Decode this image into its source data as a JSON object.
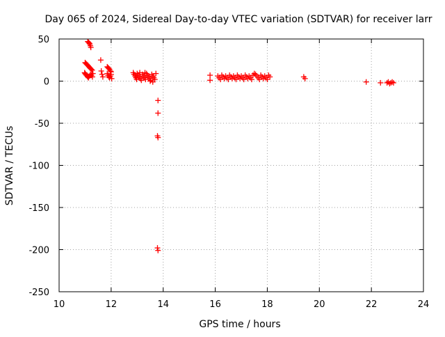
{
  "chart_data": {
    "type": "scatter",
    "title": "Day 065 of 2024, Sidereal Day-to-day VTEC variation (SDTVAR) for receiver larr",
    "xlabel": "GPS time / hours",
    "ylabel": "SDTVAR / TECUs",
    "xlim": [
      10,
      24
    ],
    "ylim": [
      -250,
      50
    ],
    "xticks": [
      10,
      12,
      14,
      16,
      18,
      20,
      22,
      24
    ],
    "yticks": [
      -250,
      -200,
      -150,
      -100,
      -50,
      0,
      50
    ],
    "xtick_labels": [
      "10",
      "12",
      "14",
      "16",
      "18",
      "20",
      "22",
      "24"
    ],
    "ytick_labels": [
      "-250",
      "-200",
      "-150",
      "-100",
      "-50",
      "0",
      "50"
    ],
    "grid": true,
    "marker": "plus",
    "color": "#ff0000",
    "series": [
      {
        "name": "SDTVAR",
        "points": [
          [
            11.1,
            47
          ],
          [
            11.13,
            46
          ],
          [
            11.16,
            45
          ],
          [
            11.18,
            44
          ],
          [
            11.2,
            42
          ],
          [
            11.22,
            40
          ],
          [
            11.0,
            22
          ],
          [
            11.03,
            21
          ],
          [
            11.06,
            20
          ],
          [
            11.09,
            19
          ],
          [
            11.12,
            18
          ],
          [
            11.15,
            17
          ],
          [
            11.18,
            16
          ],
          [
            11.21,
            15
          ],
          [
            11.24,
            14
          ],
          [
            11.27,
            13
          ],
          [
            10.98,
            10
          ],
          [
            11.0,
            9
          ],
          [
            11.02,
            8
          ],
          [
            11.05,
            7
          ],
          [
            11.08,
            6
          ],
          [
            11.1,
            5
          ],
          [
            11.13,
            4
          ],
          [
            11.16,
            6
          ],
          [
            11.2,
            8
          ],
          [
            11.24,
            7
          ],
          [
            11.28,
            5
          ],
          [
            11.3,
            9
          ],
          [
            11.6,
            25
          ],
          [
            11.62,
            12
          ],
          [
            11.65,
            8
          ],
          [
            11.68,
            5
          ],
          [
            11.85,
            17
          ],
          [
            11.88,
            16
          ],
          [
            11.91,
            15
          ],
          [
            11.94,
            14
          ],
          [
            11.97,
            12
          ],
          [
            12.0,
            11
          ],
          [
            11.85,
            9
          ],
          [
            11.88,
            7
          ],
          [
            11.91,
            5
          ],
          [
            11.94,
            4
          ],
          [
            11.97,
            6
          ],
          [
            12.0,
            8
          ],
          [
            12.02,
            3
          ],
          [
            12.85,
            10
          ],
          [
            12.88,
            8
          ],
          [
            12.92,
            6
          ],
          [
            12.95,
            4
          ],
          [
            12.98,
            2
          ],
          [
            13.0,
            9
          ],
          [
            13.04,
            7
          ],
          [
            13.08,
            5
          ],
          [
            13.12,
            3
          ],
          [
            13.16,
            1
          ],
          [
            13.2,
            8
          ],
          [
            13.24,
            6
          ],
          [
            13.28,
            4
          ],
          [
            13.32,
            2
          ],
          [
            13.36,
            9
          ],
          [
            13.4,
            7
          ],
          [
            13.44,
            5
          ],
          [
            13.48,
            3
          ],
          [
            13.52,
            1
          ],
          [
            13.56,
            8
          ],
          [
            13.6,
            6
          ],
          [
            13.64,
            4
          ],
          [
            13.68,
            2
          ],
          [
            13.72,
            9
          ],
          [
            13.1,
            10
          ],
          [
            13.3,
            10
          ],
          [
            13.5,
            0
          ],
          [
            13.6,
            -1
          ],
          [
            13.8,
            -23
          ],
          [
            13.8,
            -38
          ],
          [
            13.78,
            -65
          ],
          [
            13.8,
            -67
          ],
          [
            13.78,
            -198
          ],
          [
            13.8,
            -201
          ],
          [
            15.8,
            7
          ],
          [
            15.8,
            1
          ],
          [
            16.1,
            6
          ],
          [
            16.15,
            4
          ],
          [
            16.2,
            2
          ],
          [
            16.25,
            7
          ],
          [
            16.3,
            5
          ],
          [
            16.35,
            3
          ],
          [
            16.4,
            6
          ],
          [
            16.45,
            4
          ],
          [
            16.5,
            2
          ],
          [
            16.55,
            7
          ],
          [
            16.6,
            5
          ],
          [
            16.65,
            3
          ],
          [
            16.7,
            6
          ],
          [
            16.75,
            4
          ],
          [
            16.8,
            2
          ],
          [
            16.85,
            7
          ],
          [
            16.9,
            5
          ],
          [
            16.95,
            3
          ],
          [
            17.0,
            6
          ],
          [
            17.05,
            4
          ],
          [
            17.1,
            2
          ],
          [
            17.15,
            7
          ],
          [
            17.2,
            5
          ],
          [
            17.25,
            3
          ],
          [
            17.3,
            6
          ],
          [
            17.35,
            4
          ],
          [
            17.4,
            2
          ],
          [
            17.45,
            7
          ],
          [
            17.5,
            9
          ],
          [
            17.55,
            8
          ],
          [
            17.6,
            6
          ],
          [
            17.65,
            4
          ],
          [
            17.7,
            2
          ],
          [
            17.75,
            7
          ],
          [
            17.8,
            5
          ],
          [
            17.85,
            3
          ],
          [
            17.9,
            6
          ],
          [
            17.95,
            4
          ],
          [
            18.0,
            2
          ],
          [
            18.05,
            7
          ],
          [
            18.1,
            5
          ],
          [
            19.4,
            5
          ],
          [
            19.45,
            3
          ],
          [
            21.8,
            -1
          ],
          [
            22.35,
            -2
          ],
          [
            22.6,
            -2
          ],
          [
            22.65,
            -1
          ],
          [
            22.7,
            -3
          ],
          [
            22.75,
            -2
          ],
          [
            22.8,
            -1
          ],
          [
            22.85,
            -2
          ]
        ]
      }
    ]
  }
}
